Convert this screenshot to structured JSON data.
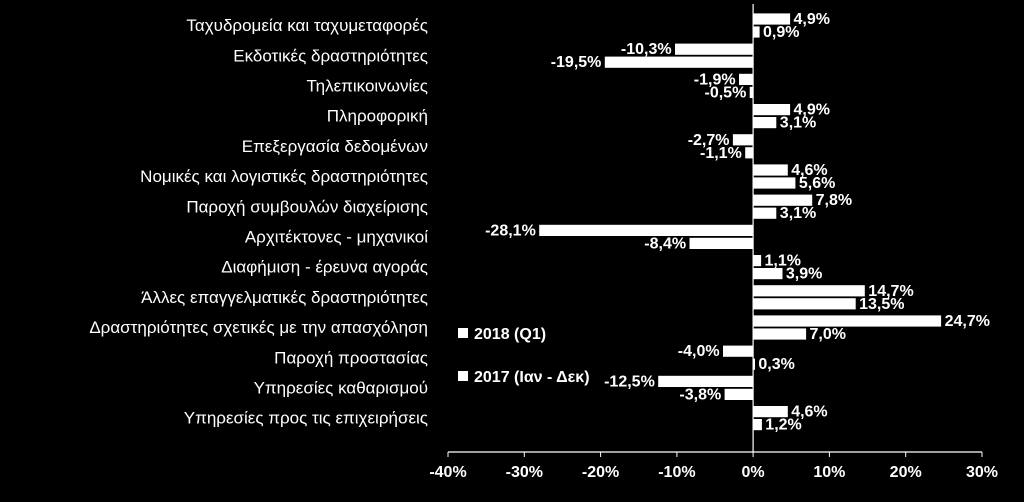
{
  "chart_data": {
    "type": "bar",
    "orientation": "horizontal",
    "title": "",
    "xlabel": "",
    "ylabel": "",
    "xlim": [
      -40,
      30
    ],
    "x_ticks": [
      -40,
      -30,
      -20,
      -10,
      0,
      10,
      20,
      30
    ],
    "x_tick_labels": [
      "-40%",
      "-30%",
      "-20%",
      "-10%",
      "0%",
      "10%",
      "20%",
      "30%"
    ],
    "grid": false,
    "legend_position": "middle-left",
    "colors": {
      "background": "#000000",
      "bar_fill": "#ffffff",
      "bar_stroke": "#000000",
      "text": "#ffffff",
      "axis": "#ffffff"
    },
    "categories": [
      "Ταχυδρομεία και ταχυμεταφορές",
      "Εκδοτικές δραστηριότητες",
      "Τηλεπικοινωνίες",
      "Πληροφορική",
      "Επεξεργασία δεδομένων",
      "Νομικές και λογιστικές δραστηριότητες",
      "Παροχή συμβουλών διαχείρισης",
      "Αρχιτέκτονες - μηχανικοί",
      "Διαφήμιση - έρευνα αγοράς",
      "Άλλες επαγγελματικές δραστηριότητες",
      "Δραστηριότητες σχετικές με την απασχόληση",
      "Παροχή προστασίας",
      "Υπηρεσίες καθαρισμού",
      "Υπηρεσίες προς τις επιχειρήσεις"
    ],
    "series": [
      {
        "name": "2018 (Q1)",
        "values": [
          4.9,
          -10.3,
          -1.9,
          4.9,
          -2.7,
          4.6,
          7.8,
          -28.1,
          1.1,
          14.7,
          24.7,
          -4.0,
          -12.5,
          4.6
        ],
        "labels": [
          "4,9%",
          "-10,3%",
          "-1,9%",
          "4,9%",
          "-2,7%",
          "4,6%",
          "7,8%",
          "-28,1%",
          "1,1%",
          "14,7%",
          "24,7%",
          "-4,0%",
          "-12,5%",
          "4,6%"
        ]
      },
      {
        "name": "2017 (Ιαν - Δεκ)",
        "values": [
          0.9,
          -19.5,
          -0.5,
          3.1,
          -1.1,
          5.6,
          3.1,
          -8.4,
          3.9,
          13.5,
          7.0,
          0.3,
          -3.8,
          1.2
        ],
        "labels": [
          "0,9%",
          "-19,5%",
          "-0,5%",
          "3,1%",
          "-1,1%",
          "5,6%",
          "3,1%",
          "-8,4%",
          "3,9%",
          "13,5%",
          "7,0%",
          "0,3%",
          "-3,8%",
          "1,2%"
        ]
      }
    ]
  }
}
